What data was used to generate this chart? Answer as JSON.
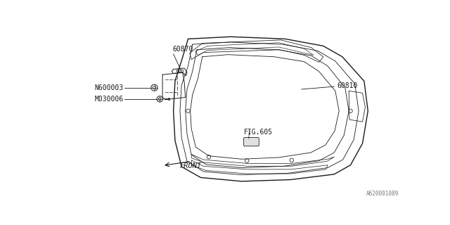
{
  "bg_color": "#ffffff",
  "line_color": "#1a1a1a",
  "part_number_60870": "60870",
  "part_number_60810": "60810",
  "part_number_N600003": "N600003",
  "part_number_M030006": "M030006",
  "fig_label": "FIG.605",
  "front_label": "FRONT",
  "catalog_number": "A620001089",
  "label_fontsize": 7.0
}
